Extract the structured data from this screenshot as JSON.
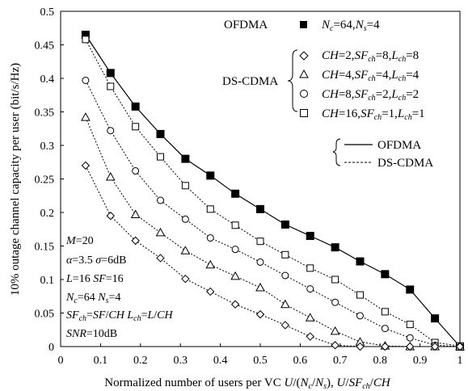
{
  "chart_data": {
    "type": "line",
    "xlabel": "Normalized number of users per VC U/(N_c/N_s), U/SF_ch/CH",
    "ylabel": "10% outage channel capacity per user (bit/s/Hz)",
    "xlim": [
      0,
      1
    ],
    "ylim": [
      0,
      0.5
    ],
    "x_ticks": [
      "0",
      "0.1",
      "0.2",
      "0.3",
      "0.4",
      "0.5",
      "0.6",
      "0.7",
      "0.8",
      "0.9",
      "1"
    ],
    "y_ticks": [
      "0",
      "0.05",
      "0.1",
      "0.15",
      "0.2",
      "0.25",
      "0.3",
      "0.35",
      "0.4",
      "0.45",
      "0.5"
    ],
    "grid": false,
    "x": [
      0.0625,
      0.125,
      0.1875,
      0.25,
      0.3125,
      0.375,
      0.4375,
      0.5,
      0.5625,
      0.625,
      0.6875,
      0.75,
      0.8125,
      0.875,
      0.9375,
      1.0
    ],
    "series": [
      {
        "name": "OFDMA N_c=64, N_s=4",
        "marker": "filled-square",
        "line": "solid",
        "values": [
          0.465,
          0.408,
          0.358,
          0.317,
          0.28,
          0.255,
          0.228,
          0.205,
          0.182,
          0.165,
          0.148,
          0.127,
          0.108,
          0.085,
          0.042,
          0.0
        ]
      },
      {
        "name": "CH=16, SF_ch=1, L_ch=1",
        "marker": "open-square",
        "line": "dotted",
        "values": [
          0.458,
          0.388,
          0.328,
          0.283,
          0.24,
          0.205,
          0.181,
          0.157,
          0.137,
          0.117,
          0.1,
          0.077,
          0.052,
          0.033,
          0.006,
          0.001
        ]
      },
      {
        "name": "CH=8, SF_ch=2, L_ch=2",
        "marker": "open-circle",
        "line": "dotted",
        "values": [
          0.397,
          0.322,
          0.262,
          0.218,
          0.19,
          0.162,
          0.145,
          0.126,
          0.106,
          0.086,
          0.066,
          0.046,
          0.027,
          0.013,
          0.002,
          0.0
        ]
      },
      {
        "name": "CH=4, SF_ch=4, L_ch=4",
        "marker": "open-triangle",
        "line": "dotted",
        "values": [
          0.342,
          0.253,
          0.197,
          0.17,
          0.143,
          0.122,
          0.105,
          0.088,
          0.063,
          0.043,
          0.023,
          0.007,
          0.001,
          0.0,
          0.0,
          0.0
        ]
      },
      {
        "name": "CH=2, SF_ch=8, L_ch=8",
        "marker": "open-diamond",
        "line": "dotted",
        "values": [
          0.27,
          0.195,
          0.158,
          0.132,
          0.101,
          0.082,
          0.063,
          0.048,
          0.032,
          0.015,
          0.002,
          0.0,
          0.0,
          0.0,
          0.0,
          0.0
        ]
      }
    ],
    "legend": {
      "ofdma_group": "OFDMA",
      "dscdma_group": "DS-CDMA",
      "line_style_ofdma": "OFDMA",
      "line_style_dscdma": "DS-CDMA",
      "placement": "top-right"
    },
    "annotations": [
      "M=20",
      "α=3.5  σ=6dB",
      "L=16  SF=16",
      "N_c=64  N_s=4",
      "SF_ch=SF/CH  L_ch=L/CH",
      "SNR=10dB"
    ]
  }
}
